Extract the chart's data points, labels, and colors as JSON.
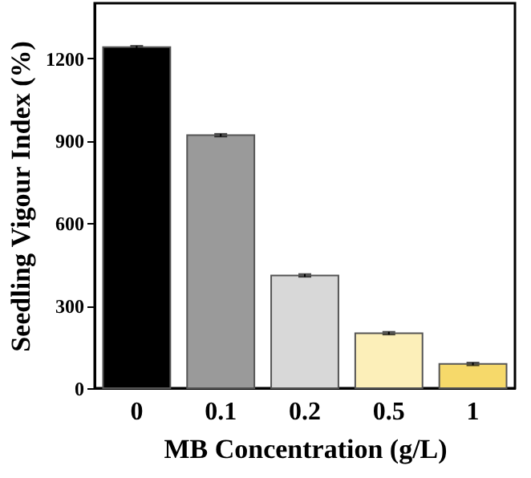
{
  "chart_data": {
    "type": "bar",
    "xlabel": "MB Concentration (g/L)",
    "ylabel": "Seedling Vigour Index (%)",
    "categories": [
      "0",
      "0.1",
      "0.2",
      "0.5",
      "1"
    ],
    "values": [
      1240,
      920,
      410,
      200,
      88
    ],
    "errors": [
      5,
      5,
      5,
      5,
      5
    ],
    "colors": [
      "#000000",
      "#9a9a9a",
      "#d8d8d8",
      "#fcefb9",
      "#f6d96a"
    ],
    "ylim": [
      0,
      1400
    ],
    "yticks": [
      0,
      300,
      600,
      900,
      1200
    ],
    "grid": false
  }
}
